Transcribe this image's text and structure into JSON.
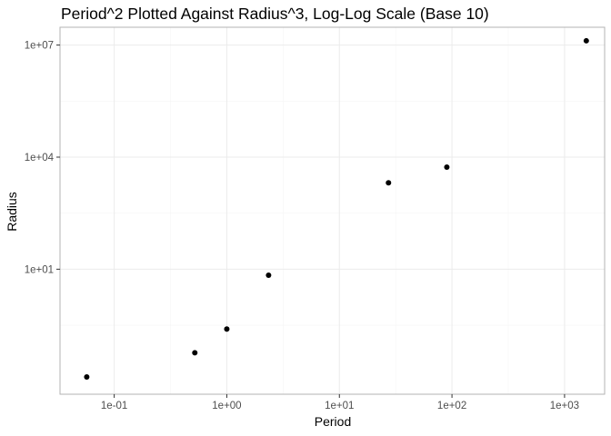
{
  "chart_data": {
    "type": "scatter",
    "title": "Period^2 Plotted Against Radius^3, Log-Log Scale (Base 10)",
    "xlabel": "Period",
    "ylabel": "Radius",
    "x_scale": "log10",
    "y_scale": "log10",
    "xlim": [
      0.033,
      2270
    ],
    "ylim": [
      0.0045,
      30000000
    ],
    "x_ticks": [
      {
        "value": 0.1,
        "label": "1e-01"
      },
      {
        "value": 1,
        "label": "1e+00"
      },
      {
        "value": 10,
        "label": "1e+01"
      },
      {
        "value": 100,
        "label": "1e+02"
      },
      {
        "value": 1000,
        "label": "1e+03"
      }
    ],
    "y_ticks": [
      {
        "value": 10,
        "label": "1e+01"
      },
      {
        "value": 10000,
        "label": "1e+04"
      },
      {
        "value": 10000000,
        "label": "1e+07"
      }
    ],
    "grid": true,
    "point_color": "#000000",
    "points": [
      {
        "x": 0.057,
        "y": 0.013
      },
      {
        "x": 0.52,
        "y": 0.058
      },
      {
        "x": 1.0,
        "y": 0.25
      },
      {
        "x": 2.35,
        "y": 6.9
      },
      {
        "x": 27.3,
        "y": 2050
      },
      {
        "x": 90.0,
        "y": 5400
      },
      {
        "x": 1560,
        "y": 13000000
      }
    ]
  }
}
